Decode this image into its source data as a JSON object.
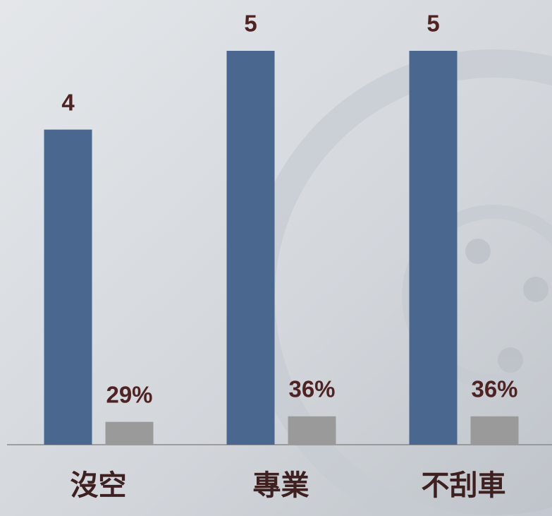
{
  "chart_data": {
    "type": "bar",
    "categories": [
      "沒空",
      "專業",
      "不刮車"
    ],
    "series": [
      {
        "color": "#4a678f",
        "values": [
          4,
          5,
          5
        ]
      },
      {
        "color": "#9a9a9a",
        "values": [
          0.29,
          0.36,
          0.36
        ],
        "value_labels": [
          "29%",
          "36%",
          "36%"
        ]
      }
    ],
    "ylim": [
      0,
      5
    ]
  }
}
